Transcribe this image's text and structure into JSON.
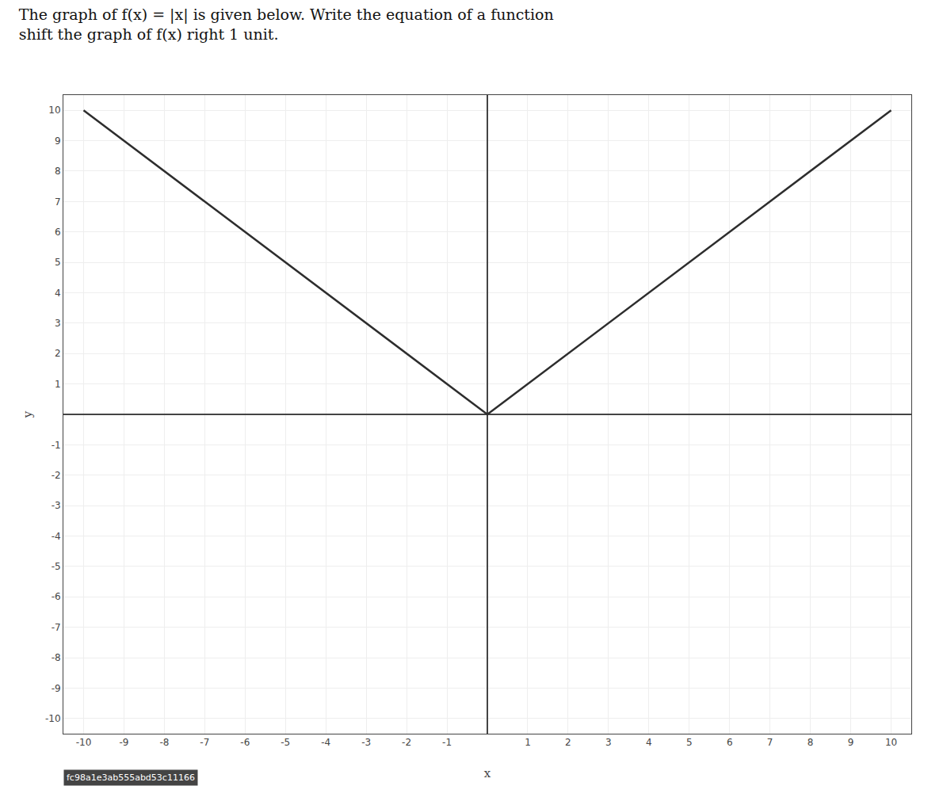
{
  "chart_data": {
    "type": "line",
    "title": "The graph of f(x) = |x| is given below. Write the equation of a function\nshift the graph of f(x) right 1 unit.",
    "xlabel": "x",
    "ylabel": "y",
    "x": [
      -10,
      0,
      10
    ],
    "values": [
      10,
      0,
      10
    ],
    "color": "#2d2d2d",
    "xlim": [
      -10.5,
      10.5
    ],
    "ylim": [
      -10.5,
      10.5
    ],
    "xticks": [
      -10,
      -9,
      -8,
      -7,
      -6,
      -5,
      -4,
      -3,
      -2,
      -1,
      1,
      2,
      3,
      4,
      5,
      6,
      7,
      8,
      9,
      10
    ],
    "yticks": [
      -10,
      -9,
      -8,
      -7,
      -6,
      -5,
      -4,
      -3,
      -2,
      -1,
      1,
      2,
      3,
      4,
      5,
      6,
      7,
      8,
      9,
      10
    ],
    "grid": true,
    "annotations": [
      "fc98a1e3ab555abd53c11166"
    ]
  }
}
